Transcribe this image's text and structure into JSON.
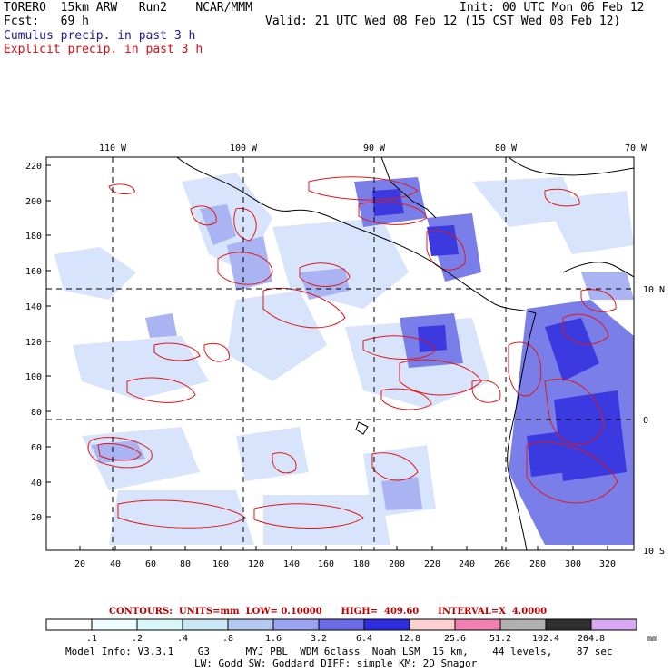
{
  "header": {
    "model": "TORERO  15km ARW   Run2    NCAR/MMM",
    "init": "Init: 00 UTC Mon 06 Feb 12",
    "fcst": "Fcst:   69 h",
    "valid": "Valid: 21 UTC Wed 08 Feb 12 (15 CST Wed 08 Feb 12)",
    "legend_cumulus": "Cumulus precip. in past 3 h",
    "legend_explicit": "Explicit precip. in past 3 h"
  },
  "axes": {
    "top_lon": [
      "110 W",
      "100 W",
      "90 W",
      "80 W",
      "70 W"
    ],
    "right_lat": [
      "10 N",
      "0",
      "10 S"
    ],
    "left_ticks": [
      "220",
      "200",
      "180",
      "160",
      "140",
      "120",
      "100",
      "80",
      "60",
      "40",
      "20"
    ],
    "bottom_ticks": [
      "20",
      "40",
      "60",
      "80",
      "100",
      "120",
      "140",
      "160",
      "180",
      "200",
      "220",
      "240",
      "260",
      "280",
      "300",
      "320"
    ]
  },
  "contour_info": "CONTOURS:  UNITS=mm  LOW= 0.10000      HIGH=  409.60      INTERVAL=X  4.0000",
  "colorbar": {
    "labels": [
      ".1",
      ".2",
      ".4",
      ".8",
      "1.6",
      "3.2",
      "6.4",
      "12.8",
      "25.6",
      "51.2",
      "102.4",
      "204.8"
    ],
    "unit": "mm",
    "colors": [
      "#ffffff",
      "#ecfcff",
      "#d8f6f8",
      "#c8e6f4",
      "#b4c8f2",
      "#9aa4f0",
      "#6c6ce8",
      "#2e2ee0",
      "#fcd0d0",
      "#f080b0",
      "#b0b0b0",
      "#303030",
      "#d8a8f0"
    ]
  },
  "footer": {
    "line1": "Model Info: V3.3.1    G3      MYJ PBL  WDM 6class  Noah LSM  15 km,    44 levels,    87 sec",
    "line2": "LW: Godd SW: Goddard DIFF: simple KM: 2D Smagor"
  }
}
